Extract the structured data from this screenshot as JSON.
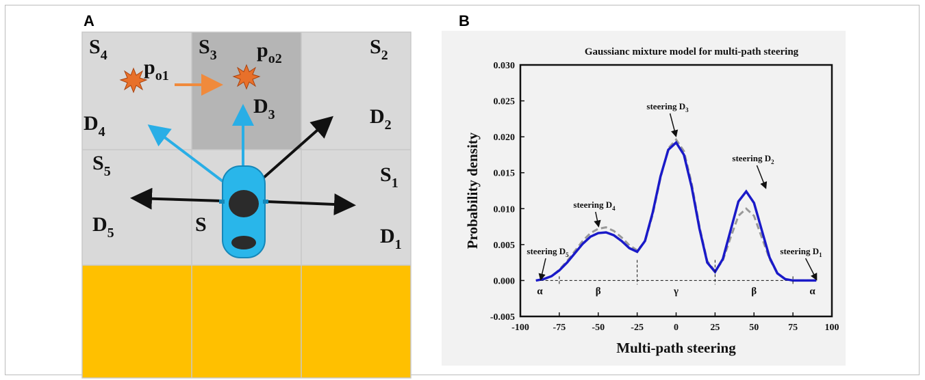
{
  "diagram": {
    "panel_label": "A",
    "labels": [
      {
        "main": "S",
        "sub": "4"
      },
      {
        "main": "p",
        "sub": "o1"
      },
      {
        "main": "S",
        "sub": "3"
      },
      {
        "main": "p",
        "sub": "o2"
      },
      {
        "main": "S",
        "sub": "2"
      },
      {
        "main": "D",
        "sub": "4"
      },
      {
        "main": "D",
        "sub": "3"
      },
      {
        "main": "D",
        "sub": "2"
      },
      {
        "main": "S",
        "sub": "5"
      },
      {
        "main": "S",
        "sub": "1"
      },
      {
        "main": "D",
        "sub": "5"
      },
      {
        "main": "S",
        "sub": ""
      },
      {
        "main": "D",
        "sub": "1"
      }
    ]
  },
  "chart_data": {
    "type": "line",
    "panel_label": "B",
    "title": "Gaussianc mixture model for multi-path steering",
    "x_label": "Multi-path steering",
    "y_label": "Probability density",
    "x": [
      -90,
      -85,
      -80,
      -75,
      -70,
      -65,
      -60,
      -55,
      -50,
      -45,
      -40,
      -35,
      -30,
      -25,
      -20,
      -15,
      -10,
      -5,
      0,
      5,
      10,
      15,
      20,
      25,
      30,
      35,
      40,
      45,
      50,
      55,
      60,
      65,
      70,
      75,
      80,
      85,
      90
    ],
    "series": [
      {
        "color": "#1a1ac8",
        "values": [
          0.0,
          0.0002,
          0.0006,
          0.0014,
          0.0025,
          0.0038,
          0.0051,
          0.0061,
          0.0066,
          0.0067,
          0.0063,
          0.0055,
          0.0045,
          0.004,
          0.0055,
          0.0095,
          0.0145,
          0.0182,
          0.0192,
          0.0175,
          0.013,
          0.0072,
          0.0025,
          0.0012,
          0.003,
          0.007,
          0.011,
          0.0124,
          0.0108,
          0.007,
          0.0032,
          0.001,
          0.0002,
          0.0,
          0.0,
          0.0,
          0.0
        ]
      },
      {
        "color": "#999999",
        "values": [
          0.0,
          0.0002,
          0.0006,
          0.0015,
          0.0027,
          0.0041,
          0.0055,
          0.0066,
          0.0072,
          0.0074,
          0.0069,
          0.006,
          0.0049,
          0.0042,
          0.0054,
          0.0092,
          0.0143,
          0.0184,
          0.0196,
          0.018,
          0.0135,
          0.0075,
          0.0027,
          0.0013,
          0.0028,
          0.006,
          0.009,
          0.01,
          0.009,
          0.006,
          0.003,
          0.001,
          0.0002,
          0.0,
          0.0,
          0.0,
          0.0
        ]
      }
    ],
    "xlim": [
      -100,
      100
    ],
    "xticks": [
      -100,
      -75,
      -50,
      -25,
      0,
      25,
      50,
      75,
      100
    ],
    "ylim": [
      -0.005,
      0.03
    ],
    "yticks": [
      {
        "value": -0.005,
        "label": "-0.005"
      },
      {
        "value": 0,
        "label": "0.000"
      },
      {
        "value": 0.005,
        "label": "0.005"
      },
      {
        "value": 0.01,
        "label": "0.010"
      },
      {
        "value": 0.015,
        "label": "0.015"
      },
      {
        "value": 0.02,
        "label": "0.020"
      },
      {
        "value": 0.025,
        "label": "0.025"
      },
      {
        "value": 0.03,
        "label": "0.030"
      }
    ],
    "region_bounds": [
      -75,
      -25,
      25,
      75
    ],
    "regions": [
      "α",
      "β",
      "γ",
      "β",
      "α"
    ],
    "annotations": [
      {
        "main": "steering D",
        "sub": "3"
      },
      {
        "main": "steering D",
        "sub": "2"
      },
      {
        "main": "steering D",
        "sub": "4"
      },
      {
        "main": "steering D",
        "sub": "5"
      },
      {
        "main": "steering D",
        "sub": "1"
      }
    ]
  }
}
